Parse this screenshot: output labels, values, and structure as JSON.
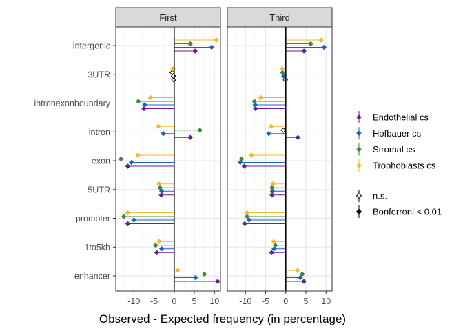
{
  "chart_data": {
    "type": "dot-line",
    "xlabel": "Observed - Expected frequency (in percentage)",
    "ylabel": "",
    "xlim": [
      -14.5,
      11.5
    ],
    "x_ticks": [
      -10,
      -5,
      0,
      5,
      10
    ],
    "x_tick_labels": [
      "-10",
      "-5",
      "0",
      "5",
      "10"
    ],
    "categories": [
      "intergenic",
      "3UTR",
      "intronexonboundary",
      "intron",
      "exon",
      "5UTR",
      "promoter",
      "1to5kb",
      "enhancer"
    ],
    "grid": true,
    "legend_position": "right",
    "colors": {
      "Endothelial cs": "#6a1b9a",
      "Hofbauer cs": "#1565c0",
      "Stromal cs": "#3a8a3a",
      "Trophoblasts cs": "#f9b82a"
    },
    "legend": {
      "series": [
        "Endothelial cs",
        "Hofbauer cs",
        "Stromal cs",
        "Trophoblasts cs"
      ],
      "significance": [
        "n.s.",
        "Bonferroni < 0.01"
      ]
    },
    "panels": [
      {
        "title": "First",
        "series": [
          {
            "name": "Endothelial cs",
            "values": [
              5.2,
              -0.1,
              -7.5,
              4.0,
              -11.5,
              -3.2,
              -11.5,
              -4.3,
              10.8
            ],
            "sig": [
              true,
              false,
              true,
              true,
              true,
              true,
              true,
              true,
              true
            ]
          },
          {
            "name": "Hofbauer cs",
            "values": [
              9.3,
              -0.2,
              -7.3,
              -2.7,
              -10.6,
              -3.1,
              -10.0,
              -3.1,
              5.3
            ],
            "sig": [
              true,
              false,
              true,
              true,
              true,
              true,
              true,
              true,
              true
            ]
          },
          {
            "name": "Stromal cs",
            "values": [
              4.0,
              -0.5,
              -8.9,
              6.4,
              -13.2,
              -3.5,
              -12.5,
              -4.6,
              7.5
            ],
            "sig": [
              true,
              false,
              true,
              true,
              true,
              true,
              true,
              true,
              true
            ]
          },
          {
            "name": "Trophoblasts cs",
            "values": [
              10.5,
              -0.3,
              -5.9,
              -3.9,
              -9.0,
              -3.7,
              -11.5,
              -3.7,
              0.9
            ],
            "sig": [
              true,
              true,
              true,
              true,
              true,
              true,
              true,
              true,
              true
            ]
          }
        ]
      },
      {
        "title": "Third",
        "series": [
          {
            "name": "Endothelial cs",
            "values": [
              4.5,
              -0.1,
              -7.5,
              3.0,
              -10.3,
              -3.4,
              -10.2,
              -3.5,
              4.5
            ],
            "sig": [
              true,
              false,
              true,
              true,
              true,
              true,
              true,
              true,
              true
            ]
          },
          {
            "name": "Hofbauer cs",
            "values": [
              9.5,
              -0.5,
              -7.6,
              -4.2,
              -11.3,
              -3.3,
              -9.1,
              -2.9,
              3.6
            ],
            "sig": [
              true,
              true,
              true,
              true,
              true,
              true,
              true,
              true,
              true
            ]
          },
          {
            "name": "Stromal cs",
            "values": [
              6.2,
              -0.8,
              -7.8,
              -0.6,
              -11.0,
              -3.4,
              -9.6,
              -2.6,
              4.1
            ],
            "sig": [
              true,
              true,
              true,
              false,
              true,
              true,
              true,
              true,
              true
            ]
          },
          {
            "name": "Trophoblasts cs",
            "values": [
              8.8,
              -0.9,
              -6.2,
              -3.6,
              -8.5,
              -3.2,
              -9.6,
              -3.0,
              2.9
            ],
            "sig": [
              true,
              true,
              true,
              true,
              true,
              true,
              true,
              true,
              true
            ]
          }
        ]
      }
    ]
  }
}
